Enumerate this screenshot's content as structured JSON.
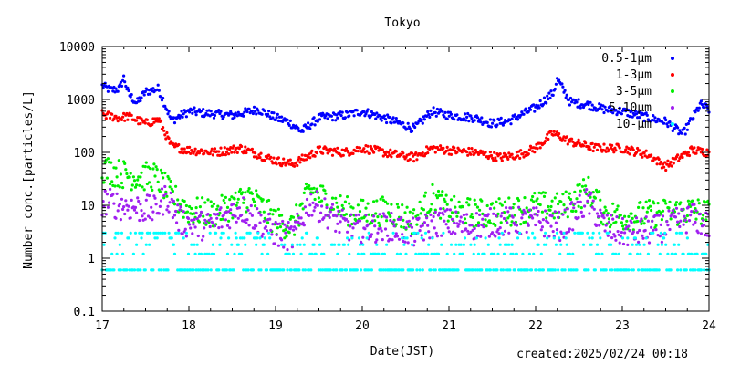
{
  "chart_data": {
    "type": "scatter",
    "title": "Tokyo",
    "xlabel": "Date(JST)",
    "ylabel": "Number conc.[particles/L]",
    "yscale": "log",
    "ylim": [
      0.1,
      10000
    ],
    "xlim": [
      17,
      24
    ],
    "x_ticks": [
      "17",
      "18",
      "19",
      "20",
      "21",
      "22",
      "23",
      "24"
    ],
    "y_ticks": [
      "0.1",
      "1",
      "10",
      "100",
      "1000",
      "10000"
    ],
    "grid": false,
    "legend_position": "top-right",
    "series": [
      {
        "name": "0.5-1μm",
        "color": "#0000ff",
        "x": [
          17.0,
          17.1,
          17.2,
          17.25,
          17.3,
          17.4,
          17.5,
          17.65,
          17.8,
          18.0,
          18.2,
          18.5,
          18.8,
          19.0,
          19.15,
          19.3,
          19.5,
          19.8,
          20.0,
          20.3,
          20.6,
          20.8,
          21.0,
          21.3,
          21.5,
          21.7,
          22.0,
          22.2,
          22.25,
          22.4,
          22.6,
          22.8,
          23.0,
          23.3,
          23.5,
          23.7,
          23.9,
          24.0
        ],
        "y": [
          1800,
          1500,
          1600,
          2600,
          1300,
          850,
          1400,
          1600,
          400,
          600,
          550,
          500,
          650,
          450,
          380,
          250,
          450,
          500,
          600,
          420,
          280,
          600,
          500,
          450,
          350,
          400,
          700,
          1300,
          2400,
          900,
          800,
          650,
          600,
          450,
          380,
          220,
          800,
          650
        ]
      },
      {
        "name": "1-3μm",
        "color": "#ff0000",
        "x": [
          17.0,
          17.2,
          17.3,
          17.5,
          17.65,
          17.8,
          18.0,
          18.3,
          18.6,
          19.0,
          19.2,
          19.5,
          19.8,
          20.0,
          20.4,
          20.6,
          20.8,
          21.0,
          21.3,
          21.6,
          21.8,
          22.0,
          22.2,
          22.4,
          22.7,
          23.0,
          23.3,
          23.5,
          23.8,
          24.0
        ],
        "y": [
          520,
          450,
          480,
          350,
          420,
          130,
          110,
          100,
          120,
          70,
          60,
          110,
          100,
          120,
          90,
          80,
          120,
          110,
          100,
          80,
          90,
          120,
          230,
          160,
          120,
          120,
          90,
          55,
          110,
          100
        ]
      },
      {
        "name": "3-5μm",
        "color": "#00ee00",
        "x": [
          17.0,
          17.2,
          17.4,
          17.6,
          17.7,
          17.8,
          18.0,
          18.3,
          18.7,
          19.0,
          19.2,
          19.4,
          19.6,
          19.8,
          20.0,
          20.3,
          20.6,
          20.8,
          21.0,
          21.4,
          21.8,
          22.0,
          22.3,
          22.6,
          22.8,
          23.0,
          23.4,
          23.8,
          24.0
        ],
        "y": [
          50,
          40,
          35,
          35,
          25,
          15,
          8,
          7,
          15,
          5,
          4,
          20,
          12,
          8,
          7,
          8,
          5,
          14,
          8,
          7,
          8,
          10,
          9,
          20,
          7,
          6,
          7,
          8,
          7
        ]
      },
      {
        "name": "5-10μm",
        "color": "#a020f0",
        "x": [
          17.0,
          17.2,
          17.4,
          17.6,
          17.75,
          17.9,
          18.2,
          18.6,
          19.0,
          19.2,
          19.4,
          19.6,
          19.8,
          20.0,
          20.3,
          20.6,
          20.9,
          21.2,
          21.6,
          22.0,
          22.3,
          22.6,
          22.8,
          23.0,
          23.4,
          23.8,
          24.0
        ],
        "y": [
          12,
          10,
          9,
          8,
          15,
          5,
          4,
          9,
          3,
          2.5,
          12,
          7,
          4,
          3.5,
          4,
          3,
          5,
          4,
          5,
          5,
          4,
          12,
          4,
          3,
          3.5,
          6,
          4
        ]
      },
      {
        "name": "10-μm",
        "color": "#00ffff",
        "x": [
          17.0,
          17.3,
          17.6,
          17.7,
          17.8,
          18.0,
          18.4,
          18.8,
          19.2,
          19.6,
          20.0,
          20.4,
          20.8,
          21.2,
          21.6,
          22.0,
          22.4,
          22.6,
          22.8,
          23.2,
          23.6,
          24.0
        ],
        "y": [
          2.0,
          1.8,
          3.0,
          8.0,
          2.5,
          1.8,
          1.8,
          2.2,
          1.5,
          2.0,
          1.5,
          1.8,
          2.0,
          1.5,
          1.6,
          1.8,
          1.8,
          3.0,
          1.6,
          1.5,
          1.8,
          1.6
        ],
        "quantized_levels": [
          0.6,
          1.2,
          1.8,
          2.4,
          3.0
        ]
      }
    ]
  },
  "footer": {
    "created": "created:2025/02/24 00:18"
  }
}
